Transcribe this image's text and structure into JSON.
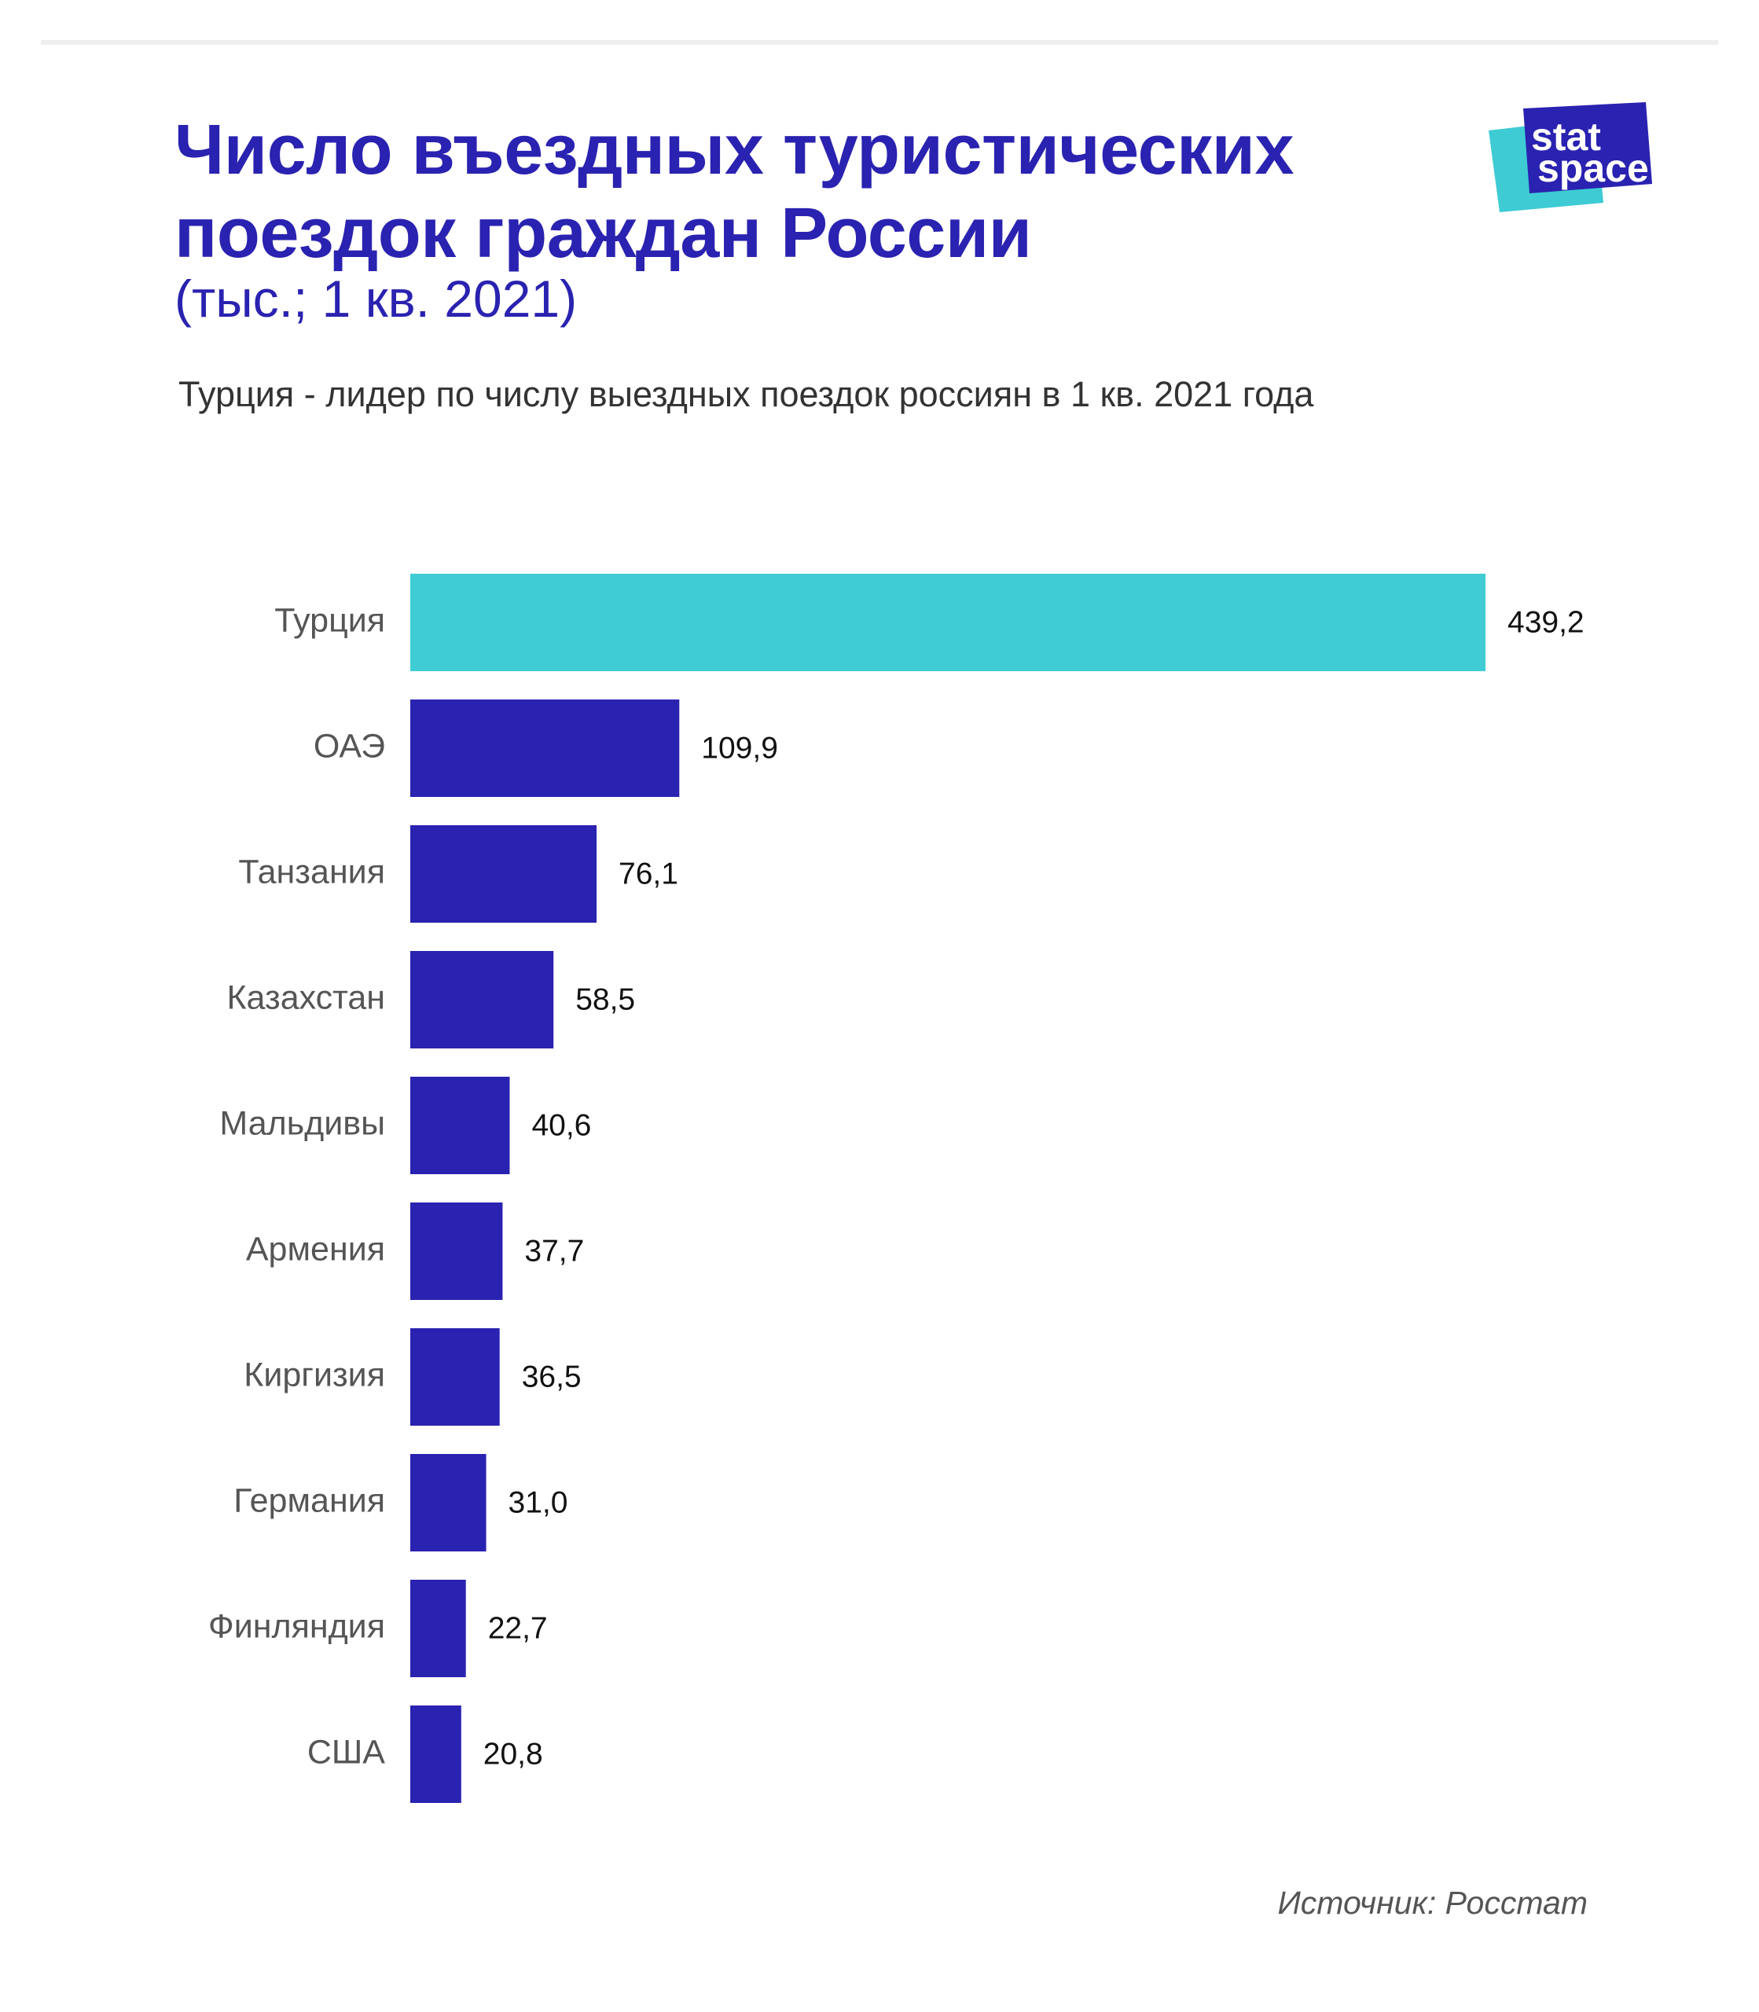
{
  "title_lines": [
    "Число въездных туристических",
    "поездок граждан России"
  ],
  "title_sub": "(тыс.; 1 кв. 2021)",
  "subtitle": "Турция - лидер по числу выездных поездок россиян в 1 кв. 2021 года",
  "logo": {
    "line1": "stat",
    "line2": "space",
    "colors": [
      "#3ecbd4",
      "#2a22b0"
    ]
  },
  "source": "Источник: Росстат",
  "colors": {
    "title": "#2a22b0",
    "highlight": "#40ccd4",
    "bar": "#2a22b0"
  },
  "chart_data": {
    "type": "bar",
    "orientation": "horizontal",
    "categories": [
      "Турция",
      "ОАЭ",
      "Танзания",
      "Казахстан",
      "Мальдивы",
      "Армения",
      "Киргизия",
      "Германия",
      "Финляндия",
      "США"
    ],
    "values": [
      439.2,
      109.9,
      76.1,
      58.5,
      40.6,
      37.7,
      36.5,
      31.0,
      22.7,
      20.8
    ],
    "value_labels": [
      "439,2",
      "109,9",
      "76,1",
      "58,5",
      "40,6",
      "37,7",
      "36,5",
      "31,0",
      "22,7",
      "20,8"
    ],
    "highlight_index": 0,
    "title": "Число въездных туристических поездок граждан России",
    "xlabel": "",
    "ylabel": "",
    "xlim": [
      0,
      439.2
    ],
    "grid": false,
    "legend": "none"
  }
}
